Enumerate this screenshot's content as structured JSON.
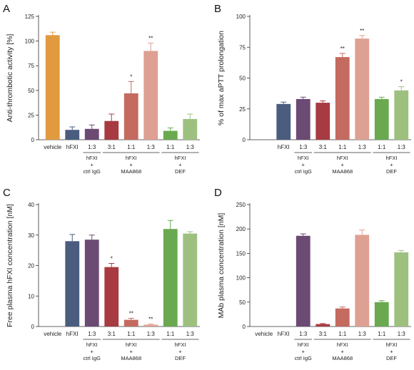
{
  "colors": {
    "vehicle": "#e29a3f",
    "hfxi": "#4b5d7f",
    "ctrl_igg": "#6b4a73",
    "maa868_3_1": "#a83a42",
    "maa868_1_1": "#c46a5e",
    "maa868_1_3": "#dea093",
    "def_1_1": "#6aa94f",
    "def_1_3": "#9dc07f"
  },
  "chart_data": [
    {
      "type": "bar",
      "panel": "A",
      "ylabel": "Anti-thrombotic activity [%]",
      "xlabel": "",
      "ylim": [
        0,
        125
      ],
      "yticks": [
        0,
        25,
        50,
        75,
        100,
        125
      ],
      "categories": [
        "vehicle",
        "hFXI",
        "1:3",
        "3:1",
        "1:1",
        "1:3",
        "1:1",
        "1:3"
      ],
      "values": [
        106,
        10,
        11,
        19,
        47,
        90,
        9,
        21
      ],
      "errors": [
        3,
        3,
        4,
        7,
        12,
        8,
        3,
        5
      ],
      "significance": [
        "",
        "",
        "",
        "",
        "*",
        "**",
        "",
        ""
      ],
      "bar_colors": [
        "vehicle",
        "hfxi",
        "ctrl_igg",
        "maa868_3_1",
        "maa868_1_1",
        "maa868_1_3",
        "def_1_1",
        "def_1_3"
      ],
      "groups": [
        {
          "lines": [
            "hFXI",
            "+",
            "ctrl IgG"
          ],
          "from": 2,
          "to": 2
        },
        {
          "lines": [
            "hFXI",
            "+",
            "MAA868"
          ],
          "from": 3,
          "to": 5
        },
        {
          "lines": [
            "hFXI",
            "+",
            "DEF"
          ],
          "from": 6,
          "to": 7
        }
      ]
    },
    {
      "type": "bar",
      "panel": "B",
      "ylabel": "% of max aPTT prolongation",
      "xlabel": "",
      "ylim": [
        0,
        100
      ],
      "yticks": [
        0,
        25,
        50,
        75,
        100
      ],
      "categories": [
        "hFXI",
        "1:3",
        "3:1",
        "1:1",
        "1:3",
        "1:1",
        "1:3"
      ],
      "values": [
        29,
        33,
        30,
        67,
        82,
        33,
        40
      ],
      "errors": [
        1.5,
        1.5,
        1.5,
        3,
        2.5,
        1.5,
        3
      ],
      "significance": [
        "",
        "",
        "",
        "**",
        "**",
        "",
        "*"
      ],
      "bar_colors": [
        "hfxi",
        "ctrl_igg",
        "maa868_3_1",
        "maa868_1_1",
        "maa868_1_3",
        "def_1_1",
        "def_1_3"
      ],
      "groups": [
        {
          "lines": [
            "hFXI",
            "+",
            "ctrl IgG"
          ],
          "from": 1,
          "to": 1
        },
        {
          "lines": [
            "hFXI",
            "+",
            "MAA868"
          ],
          "from": 2,
          "to": 4
        },
        {
          "lines": [
            "hFXI",
            "+",
            "DEF"
          ],
          "from": 5,
          "to": 6
        }
      ]
    },
    {
      "type": "bar",
      "panel": "C",
      "ylabel": "Free plasma hFXI concentration [nM]",
      "xlabel": "",
      "ylim": [
        0,
        40
      ],
      "yticks": [
        0,
        10,
        20,
        30,
        40
      ],
      "categories": [
        "vehicle",
        "hFXI",
        "1:3",
        "3:1",
        "1:1",
        "1:3",
        "1:1",
        "1:3"
      ],
      "values": [
        0,
        28,
        28.5,
        19.5,
        2.2,
        0.6,
        32,
        30.5
      ],
      "errors": [
        0,
        2.2,
        1.5,
        1.2,
        0.5,
        0.2,
        2.8,
        0.6
      ],
      "significance": [
        "",
        "",
        "",
        "*",
        "**",
        "**",
        "",
        ""
      ],
      "bar_colors": [
        "vehicle",
        "hfxi",
        "ctrl_igg",
        "maa868_3_1",
        "maa868_1_1",
        "maa868_1_3",
        "def_1_1",
        "def_1_3"
      ],
      "groups": [
        {
          "lines": [
            "hFXI",
            "+",
            "ctrl IgG"
          ],
          "from": 2,
          "to": 2
        },
        {
          "lines": [
            "hFXI",
            "+",
            "MAA868"
          ],
          "from": 3,
          "to": 5
        },
        {
          "lines": [
            "hFXI",
            "+",
            "DEF"
          ],
          "from": 6,
          "to": 7
        }
      ]
    },
    {
      "type": "bar",
      "panel": "D",
      "ylabel": "MAb plasma concentration [nM]",
      "xlabel": "",
      "ylim": [
        0,
        250
      ],
      "yticks": [
        0,
        50,
        100,
        150,
        200,
        250
      ],
      "categories": [
        "vehicle",
        "hFXI",
        "1:3",
        "3:1",
        "1:1",
        "1:3",
        "1:1",
        "1:3"
      ],
      "values": [
        0,
        0,
        186,
        5,
        37,
        188,
        50,
        152
      ],
      "errors": [
        0,
        0,
        4,
        1,
        3,
        10,
        3,
        4
      ],
      "significance": [
        "",
        "",
        "",
        "",
        "",
        "",
        "",
        ""
      ],
      "bar_colors": [
        "vehicle",
        "hfxi",
        "ctrl_igg",
        "maa868_3_1",
        "maa868_1_1",
        "maa868_1_3",
        "def_1_1",
        "def_1_3"
      ],
      "groups": [
        {
          "lines": [
            "hFXI",
            "+",
            "ctrl IgG"
          ],
          "from": 2,
          "to": 2
        },
        {
          "lines": [
            "hFXI",
            "+",
            "MAA868"
          ],
          "from": 3,
          "to": 5
        },
        {
          "lines": [
            "hFXI",
            "+",
            "DEF"
          ],
          "from": 6,
          "to": 7
        }
      ]
    }
  ]
}
